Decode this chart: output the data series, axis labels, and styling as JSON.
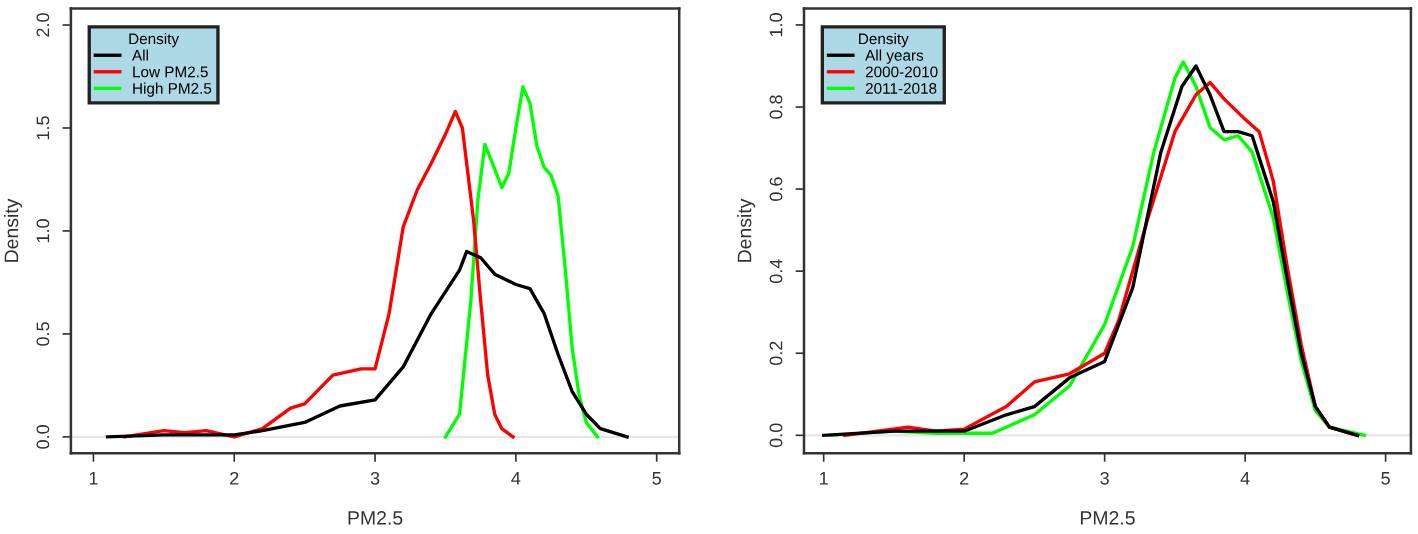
{
  "chart_data": [
    {
      "type": "line",
      "xlabel": "PM2.5",
      "ylabel": "Density",
      "legend": "top left",
      "legend_title": "Density",
      "line_style": "solid",
      "xlim": [
        0.84,
        5.16
      ],
      "ylim": [
        -0.08,
        2.08
      ],
      "xticks": [
        1,
        2,
        3,
        4,
        5
      ],
      "yticks": [
        {
          "value": 0,
          "label": "0.0"
        },
        {
          "value": 0.5,
          "label": "0.5"
        },
        {
          "value": 1,
          "label": "1.0"
        },
        {
          "value": 1.5,
          "label": "1.5"
        },
        {
          "value": 2,
          "label": "2.0"
        }
      ],
      "ref_lines": [
        {
          "axis": "y",
          "value": 0,
          "label": null,
          "color": "#e6e6e6"
        }
      ],
      "series": [
        {
          "name": "All",
          "color": "#000000",
          "x": [
            1.1,
            1.5,
            2.0,
            2.2,
            2.5,
            2.75,
            3.0,
            3.2,
            3.4,
            3.6,
            3.65,
            3.75,
            3.85,
            4.0,
            4.1,
            4.2,
            4.3,
            4.4,
            4.5,
            4.6,
            4.79
          ],
          "values": [
            0,
            0.01,
            0.01,
            0.03,
            0.07,
            0.15,
            0.18,
            0.34,
            0.6,
            0.81,
            0.9,
            0.87,
            0.79,
            0.74,
            0.72,
            0.6,
            0.4,
            0.22,
            0.11,
            0.04,
            0
          ]
        },
        {
          "name": "Low PM2.5",
          "color": "#ff0000",
          "x": [
            1.22,
            1.5,
            1.65,
            1.8,
            2.0,
            2.2,
            2.4,
            2.5,
            2.7,
            2.9,
            3.0,
            3.1,
            3.2,
            3.3,
            3.4,
            3.5,
            3.57,
            3.62,
            3.7,
            3.75,
            3.8,
            3.85,
            3.9,
            3.98
          ],
          "values": [
            0,
            0.03,
            0.02,
            0.03,
            0,
            0.04,
            0.14,
            0.16,
            0.3,
            0.33,
            0.33,
            0.6,
            1.02,
            1.2,
            1.33,
            1.47,
            1.58,
            1.5,
            1.05,
            0.66,
            0.3,
            0.11,
            0.04,
            0
          ]
        },
        {
          "name": "High PM2.5",
          "color": "#00ff00",
          "x": [
            3.5,
            3.6,
            3.68,
            3.73,
            3.78,
            3.85,
            3.9,
            3.95,
            4.0,
            4.05,
            4.1,
            4.15,
            4.2,
            4.25,
            4.3,
            4.35,
            4.4,
            4.45,
            4.5,
            4.58
          ],
          "values": [
            0,
            0.11,
            0.66,
            1.15,
            1.42,
            1.3,
            1.21,
            1.28,
            1.5,
            1.7,
            1.62,
            1.41,
            1.31,
            1.27,
            1.17,
            0.82,
            0.43,
            0.2,
            0.07,
            0
          ]
        }
      ]
    },
    {
      "type": "line",
      "xlabel": "PM2.5",
      "ylabel": "Density",
      "legend": "top left",
      "legend_title": "Density",
      "line_style": "solid",
      "xlim": [
        0.86,
        5.18
      ],
      "ylim": [
        -0.044,
        1.04
      ],
      "xticks": [
        1,
        2,
        3,
        4,
        5
      ],
      "yticks": [
        {
          "value": 0,
          "label": "0.0"
        },
        {
          "value": 0.2,
          "label": "0.2"
        },
        {
          "value": 0.4,
          "label": "0.4"
        },
        {
          "value": 0.6,
          "label": "0.6"
        },
        {
          "value": 0.8,
          "label": "0.8"
        },
        {
          "value": 1,
          "label": "1.0"
        }
      ],
      "ref_lines": [
        {
          "axis": "y",
          "value": 0,
          "label": null,
          "color": "#e6e6e6"
        }
      ],
      "series": [
        {
          "name": "All years",
          "color": "#000000",
          "x": [
            1.0,
            1.5,
            2.0,
            2.3,
            2.5,
            2.75,
            3.0,
            3.2,
            3.4,
            3.55,
            3.65,
            3.75,
            3.85,
            3.95,
            4.05,
            4.2,
            4.3,
            4.4,
            4.5,
            4.6,
            4.8
          ],
          "values": [
            0,
            0.01,
            0.01,
            0.05,
            0.07,
            0.14,
            0.18,
            0.36,
            0.69,
            0.85,
            0.9,
            0.83,
            0.74,
            0.74,
            0.73,
            0.57,
            0.38,
            0.2,
            0.07,
            0.02,
            0
          ]
        },
        {
          "name": "2000-2010",
          "color": "#ff0000",
          "x": [
            1.15,
            1.6,
            1.8,
            2.0,
            2.3,
            2.5,
            2.75,
            2.9,
            3.0,
            3.1,
            3.3,
            3.5,
            3.65,
            3.75,
            3.85,
            4.0,
            4.1,
            4.2,
            4.3,
            4.4,
            4.5,
            4.6,
            4.8
          ],
          "values": [
            0,
            0.02,
            0.01,
            0.015,
            0.07,
            0.13,
            0.15,
            0.18,
            0.2,
            0.28,
            0.52,
            0.74,
            0.83,
            0.86,
            0.82,
            0.77,
            0.74,
            0.62,
            0.41,
            0.22,
            0.07,
            0.02,
            0
          ]
        },
        {
          "name": "2011-2018",
          "color": "#00ff00",
          "x": [
            1.05,
            1.5,
            1.8,
            2.2,
            2.5,
            2.75,
            3.0,
            3.2,
            3.35,
            3.5,
            3.56,
            3.65,
            3.75,
            3.85,
            3.95,
            4.05,
            4.2,
            4.3,
            4.4,
            4.5,
            4.6,
            4.85
          ],
          "values": [
            0,
            0.01,
            0.005,
            0.005,
            0.05,
            0.12,
            0.27,
            0.46,
            0.69,
            0.87,
            0.91,
            0.85,
            0.75,
            0.72,
            0.73,
            0.69,
            0.53,
            0.35,
            0.18,
            0.06,
            0.02,
            0
          ]
        }
      ]
    }
  ]
}
